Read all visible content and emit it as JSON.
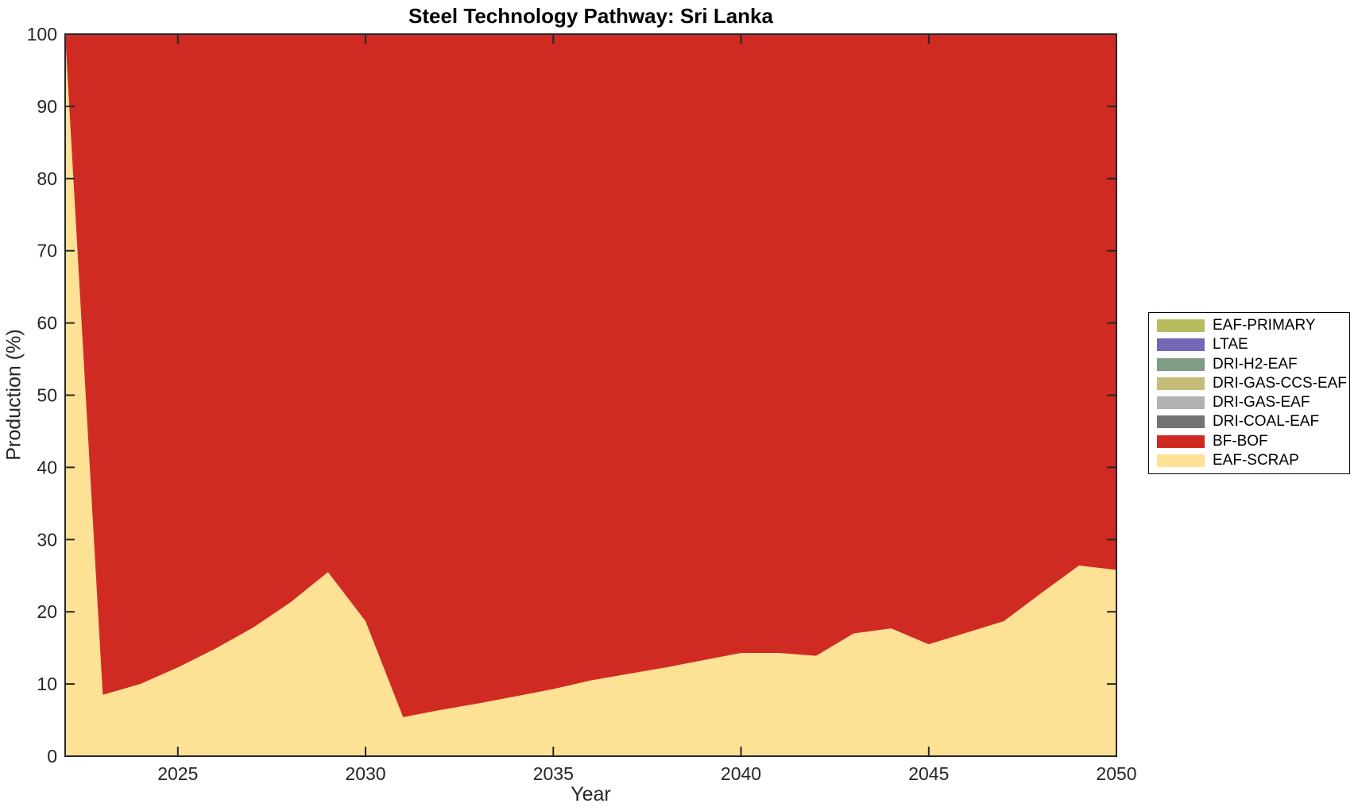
{
  "chart_data": {
    "type": "area",
    "stacked": true,
    "title": "Steel Technology Pathway: Sri Lanka",
    "xlabel": "Year",
    "ylabel": "Production (%)",
    "xlim": [
      2022,
      2050
    ],
    "ylim": [
      0,
      100
    ],
    "xticks": [
      2025,
      2030,
      2035,
      2040,
      2045,
      2050
    ],
    "yticks": [
      0,
      10,
      20,
      30,
      40,
      50,
      60,
      70,
      80,
      90,
      100
    ],
    "grid": false,
    "legend_position": "right-outside",
    "legend_order_top_to_bottom": [
      "EAF-PRIMARY",
      "LTAE",
      "DRI-H2-EAF",
      "DRI-GAS-CCS-EAF",
      "DRI-GAS-EAF",
      "DRI-COAL-EAF",
      "BF-BOF",
      "EAF-SCRAP"
    ],
    "axis_color": "#262626",
    "x": [
      2022,
      2023,
      2024,
      2025,
      2026,
      2027,
      2028,
      2029,
      2030,
      2031,
      2032,
      2033,
      2034,
      2035,
      2036,
      2037,
      2038,
      2039,
      2040,
      2041,
      2042,
      2043,
      2044,
      2045,
      2046,
      2047,
      2048,
      2049,
      2050
    ],
    "series": [
      {
        "name": "EAF-SCRAP",
        "color": "#fde194",
        "values": [
          100,
          8.5,
          10.0,
          12.3,
          14.9,
          17.8,
          21.3,
          25.5,
          18.7,
          5.4,
          6.4,
          7.3,
          8.3,
          9.3,
          10.5,
          11.4,
          12.3,
          13.3,
          14.3,
          14.3,
          13.9,
          17.0,
          17.7,
          15.5,
          17.1,
          18.7,
          22.6,
          26.4,
          25.8
        ]
      },
      {
        "name": "BF-BOF",
        "color": "#d02b23",
        "values": [
          0,
          91.5,
          90.0,
          87.7,
          85.1,
          82.2,
          78.7,
          74.5,
          81.3,
          94.6,
          93.6,
          92.7,
          91.7,
          90.7,
          89.5,
          88.6,
          87.7,
          86.7,
          85.7,
          85.7,
          86.1,
          83.0,
          82.3,
          84.5,
          82.9,
          81.3,
          77.4,
          73.6,
          74.2
        ]
      },
      {
        "name": "DRI-COAL-EAF",
        "color": "#737373",
        "values": [
          0,
          0,
          0,
          0,
          0,
          0,
          0,
          0,
          0,
          0,
          0,
          0,
          0,
          0,
          0,
          0,
          0,
          0,
          0,
          0,
          0,
          0,
          0,
          0,
          0,
          0,
          0,
          0,
          0
        ]
      },
      {
        "name": "DRI-GAS-EAF",
        "color": "#b2b2b2",
        "values": [
          0,
          0,
          0,
          0,
          0,
          0,
          0,
          0,
          0,
          0,
          0,
          0,
          0,
          0,
          0,
          0,
          0,
          0,
          0,
          0,
          0,
          0,
          0,
          0,
          0,
          0,
          0,
          0,
          0
        ]
      },
      {
        "name": "DRI-GAS-CCS-EAF",
        "color": "#c6bc77",
        "values": [
          0,
          0,
          0,
          0,
          0,
          0,
          0,
          0,
          0,
          0,
          0,
          0,
          0,
          0,
          0,
          0,
          0,
          0,
          0,
          0,
          0,
          0,
          0,
          0,
          0,
          0,
          0,
          0,
          0
        ]
      },
      {
        "name": "DRI-H2-EAF",
        "color": "#7e9d83",
        "values": [
          0,
          0,
          0,
          0,
          0,
          0,
          0,
          0,
          0,
          0,
          0,
          0,
          0,
          0,
          0,
          0,
          0,
          0,
          0,
          0,
          0,
          0,
          0,
          0,
          0,
          0,
          0,
          0,
          0
        ]
      },
      {
        "name": "LTAE",
        "color": "#7467b5",
        "values": [
          0,
          0,
          0,
          0,
          0,
          0,
          0,
          0,
          0,
          0,
          0,
          0,
          0,
          0,
          0,
          0,
          0,
          0,
          0,
          0,
          0,
          0,
          0,
          0,
          0,
          0,
          0,
          0,
          0
        ]
      },
      {
        "name": "EAF-PRIMARY",
        "color": "#b7bd5f",
        "values": [
          0,
          0,
          0,
          0,
          0,
          0,
          0,
          0,
          0,
          0,
          0,
          0,
          0,
          0,
          0,
          0,
          0,
          0,
          0,
          0,
          0,
          0,
          0,
          0,
          0,
          0,
          0,
          0,
          0
        ]
      }
    ]
  }
}
